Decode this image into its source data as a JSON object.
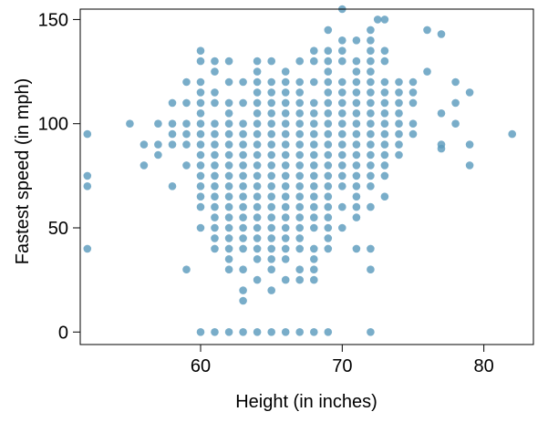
{
  "chart_data": {
    "type": "scatter",
    "title": "",
    "xlabel": "Height (in inches)",
    "ylabel": "Fastest speed (in mph)",
    "xlim": [
      51.5,
      83.5
    ],
    "ylim": [
      -6,
      155
    ],
    "xticks": [
      60,
      70,
      80
    ],
    "yticks": [
      0,
      50,
      100,
      150
    ],
    "grid": false,
    "legend": "none",
    "point_color": "#5b9bbd",
    "series": [
      {
        "points": [
          [
            52,
            95
          ],
          [
            52,
            75
          ],
          [
            52,
            70
          ],
          [
            52,
            40
          ],
          [
            55,
            100
          ],
          [
            56,
            90
          ],
          [
            56,
            80
          ],
          [
            57,
            100
          ],
          [
            57,
            90
          ],
          [
            57,
            85
          ],
          [
            58,
            110
          ],
          [
            58,
            100
          ],
          [
            58,
            95
          ],
          [
            58,
            90
          ],
          [
            58,
            70
          ],
          [
            59,
            120
          ],
          [
            59,
            110
          ],
          [
            59,
            100
          ],
          [
            59,
            95
          ],
          [
            59,
            90
          ],
          [
            59,
            80
          ],
          [
            59,
            30
          ],
          [
            60,
            135
          ],
          [
            60,
            130
          ],
          [
            60,
            120
          ],
          [
            60,
            115
          ],
          [
            60,
            110
          ],
          [
            60,
            105
          ],
          [
            60,
            100
          ],
          [
            60,
            95
          ],
          [
            60,
            90
          ],
          [
            60,
            85
          ],
          [
            60,
            80
          ],
          [
            60,
            75
          ],
          [
            60,
            70
          ],
          [
            60,
            65
          ],
          [
            60,
            60
          ],
          [
            60,
            50
          ],
          [
            60,
            0
          ],
          [
            61,
            130
          ],
          [
            61,
            125
          ],
          [
            61,
            115
          ],
          [
            61,
            110
          ],
          [
            61,
            100
          ],
          [
            61,
            95
          ],
          [
            61,
            90
          ],
          [
            61,
            85
          ],
          [
            61,
            80
          ],
          [
            61,
            75
          ],
          [
            61,
            70
          ],
          [
            61,
            65
          ],
          [
            61,
            60
          ],
          [
            61,
            55
          ],
          [
            61,
            50
          ],
          [
            61,
            45
          ],
          [
            61,
            40
          ],
          [
            61,
            0
          ],
          [
            62,
            130
          ],
          [
            62,
            120
          ],
          [
            62,
            110
          ],
          [
            62,
            105
          ],
          [
            62,
            100
          ],
          [
            62,
            95
          ],
          [
            62,
            90
          ],
          [
            62,
            85
          ],
          [
            62,
            80
          ],
          [
            62,
            75
          ],
          [
            62,
            70
          ],
          [
            62,
            65
          ],
          [
            62,
            60
          ],
          [
            62,
            55
          ],
          [
            62,
            50
          ],
          [
            62,
            45
          ],
          [
            62,
            40
          ],
          [
            62,
            35
          ],
          [
            62,
            30
          ],
          [
            62,
            0
          ],
          [
            63,
            120
          ],
          [
            63,
            110
          ],
          [
            63,
            100
          ],
          [
            63,
            95
          ],
          [
            63,
            90
          ],
          [
            63,
            85
          ],
          [
            63,
            80
          ],
          [
            63,
            75
          ],
          [
            63,
            70
          ],
          [
            63,
            65
          ],
          [
            63,
            60
          ],
          [
            63,
            55
          ],
          [
            63,
            50
          ],
          [
            63,
            45
          ],
          [
            63,
            40
          ],
          [
            63,
            30
          ],
          [
            63,
            20
          ],
          [
            63,
            15
          ],
          [
            63,
            0
          ],
          [
            64,
            130
          ],
          [
            64,
            125
          ],
          [
            64,
            120
          ],
          [
            64,
            115
          ],
          [
            64,
            110
          ],
          [
            64,
            105
          ],
          [
            64,
            100
          ],
          [
            64,
            95
          ],
          [
            64,
            90
          ],
          [
            64,
            85
          ],
          [
            64,
            80
          ],
          [
            64,
            75
          ],
          [
            64,
            70
          ],
          [
            64,
            65
          ],
          [
            64,
            60
          ],
          [
            64,
            55
          ],
          [
            64,
            50
          ],
          [
            64,
            45
          ],
          [
            64,
            40
          ],
          [
            64,
            35
          ],
          [
            64,
            25
          ],
          [
            64,
            0
          ],
          [
            65,
            130
          ],
          [
            65,
            120
          ],
          [
            65,
            115
          ],
          [
            65,
            110
          ],
          [
            65,
            105
          ],
          [
            65,
            100
          ],
          [
            65,
            95
          ],
          [
            65,
            90
          ],
          [
            65,
            85
          ],
          [
            65,
            80
          ],
          [
            65,
            75
          ],
          [
            65,
            70
          ],
          [
            65,
            65
          ],
          [
            65,
            60
          ],
          [
            65,
            55
          ],
          [
            65,
            50
          ],
          [
            65,
            45
          ],
          [
            65,
            40
          ],
          [
            65,
            35
          ],
          [
            65,
            30
          ],
          [
            65,
            20
          ],
          [
            65,
            0
          ],
          [
            66,
            125
          ],
          [
            66,
            120
          ],
          [
            66,
            115
          ],
          [
            66,
            110
          ],
          [
            66,
            105
          ],
          [
            66,
            100
          ],
          [
            66,
            95
          ],
          [
            66,
            90
          ],
          [
            66,
            85
          ],
          [
            66,
            80
          ],
          [
            66,
            75
          ],
          [
            66,
            70
          ],
          [
            66,
            65
          ],
          [
            66,
            60
          ],
          [
            66,
            55
          ],
          [
            66,
            50
          ],
          [
            66,
            45
          ],
          [
            66,
            40
          ],
          [
            66,
            35
          ],
          [
            66,
            25
          ],
          [
            66,
            0
          ],
          [
            67,
            130
          ],
          [
            67,
            120
          ],
          [
            67,
            115
          ],
          [
            67,
            110
          ],
          [
            67,
            105
          ],
          [
            67,
            100
          ],
          [
            67,
            95
          ],
          [
            67,
            90
          ],
          [
            67,
            85
          ],
          [
            67,
            80
          ],
          [
            67,
            75
          ],
          [
            67,
            70
          ],
          [
            67,
            65
          ],
          [
            67,
            60
          ],
          [
            67,
            55
          ],
          [
            67,
            50
          ],
          [
            67,
            45
          ],
          [
            67,
            40
          ],
          [
            67,
            30
          ],
          [
            67,
            25
          ],
          [
            67,
            0
          ],
          [
            68,
            135
          ],
          [
            68,
            130
          ],
          [
            68,
            120
          ],
          [
            68,
            110
          ],
          [
            68,
            105
          ],
          [
            68,
            100
          ],
          [
            68,
            95
          ],
          [
            68,
            90
          ],
          [
            68,
            85
          ],
          [
            68,
            80
          ],
          [
            68,
            75
          ],
          [
            68,
            70
          ],
          [
            68,
            65
          ],
          [
            68,
            60
          ],
          [
            68,
            55
          ],
          [
            68,
            50
          ],
          [
            68,
            40
          ],
          [
            68,
            35
          ],
          [
            68,
            30
          ],
          [
            68,
            25
          ],
          [
            68,
            0
          ],
          [
            69,
            145
          ],
          [
            69,
            135
          ],
          [
            69,
            130
          ],
          [
            69,
            125
          ],
          [
            69,
            120
          ],
          [
            69,
            115
          ],
          [
            69,
            110
          ],
          [
            69,
            105
          ],
          [
            69,
            100
          ],
          [
            69,
            95
          ],
          [
            69,
            90
          ],
          [
            69,
            85
          ],
          [
            69,
            80
          ],
          [
            69,
            75
          ],
          [
            69,
            70
          ],
          [
            69,
            65
          ],
          [
            69,
            60
          ],
          [
            69,
            55
          ],
          [
            69,
            50
          ],
          [
            69,
            45
          ],
          [
            69,
            40
          ],
          [
            69,
            0
          ],
          [
            70,
            155
          ],
          [
            70,
            140
          ],
          [
            70,
            135
          ],
          [
            70,
            130
          ],
          [
            70,
            120
          ],
          [
            70,
            115
          ],
          [
            70,
            110
          ],
          [
            70,
            105
          ],
          [
            70,
            100
          ],
          [
            70,
            95
          ],
          [
            70,
            90
          ],
          [
            70,
            85
          ],
          [
            70,
            80
          ],
          [
            70,
            75
          ],
          [
            70,
            70
          ],
          [
            70,
            60
          ],
          [
            70,
            50
          ],
          [
            71,
            140
          ],
          [
            71,
            130
          ],
          [
            71,
            125
          ],
          [
            71,
            120
          ],
          [
            71,
            115
          ],
          [
            71,
            110
          ],
          [
            71,
            105
          ],
          [
            71,
            100
          ],
          [
            71,
            95
          ],
          [
            71,
            90
          ],
          [
            71,
            85
          ],
          [
            71,
            80
          ],
          [
            71,
            75
          ],
          [
            71,
            70
          ],
          [
            71,
            65
          ],
          [
            71,
            60
          ],
          [
            71,
            55
          ],
          [
            71,
            40
          ],
          [
            72,
            145
          ],
          [
            72,
            140
          ],
          [
            72,
            135
          ],
          [
            72,
            130
          ],
          [
            72,
            125
          ],
          [
            72,
            120
          ],
          [
            72,
            115
          ],
          [
            72,
            110
          ],
          [
            72,
            105
          ],
          [
            72,
            100
          ],
          [
            72,
            95
          ],
          [
            72,
            90
          ],
          [
            72,
            85
          ],
          [
            72,
            80
          ],
          [
            72,
            75
          ],
          [
            72,
            70
          ],
          [
            72,
            60
          ],
          [
            72,
            40
          ],
          [
            72,
            30
          ],
          [
            72,
            0
          ],
          [
            72.5,
            150
          ],
          [
            73,
            150
          ],
          [
            73,
            135
          ],
          [
            73,
            130
          ],
          [
            73,
            120
          ],
          [
            73,
            115
          ],
          [
            73,
            110
          ],
          [
            73,
            105
          ],
          [
            73,
            100
          ],
          [
            73,
            95
          ],
          [
            73,
            90
          ],
          [
            73,
            85
          ],
          [
            73,
            80
          ],
          [
            73,
            75
          ],
          [
            73,
            65
          ],
          [
            74,
            120
          ],
          [
            74,
            115
          ],
          [
            74,
            110
          ],
          [
            74,
            105
          ],
          [
            74,
            100
          ],
          [
            74,
            95
          ],
          [
            74,
            90
          ],
          [
            74,
            85
          ],
          [
            75,
            120
          ],
          [
            75,
            115
          ],
          [
            75,
            110
          ],
          [
            75,
            100
          ],
          [
            75,
            95
          ],
          [
            76,
            145
          ],
          [
            76,
            125
          ],
          [
            77,
            143
          ],
          [
            77,
            105
          ],
          [
            77,
            90
          ],
          [
            77,
            88
          ],
          [
            78,
            120
          ],
          [
            78,
            110
          ],
          [
            78,
            100
          ],
          [
            79,
            115
          ],
          [
            79,
            90
          ],
          [
            79,
            80
          ],
          [
            82,
            95
          ]
        ]
      }
    ]
  }
}
